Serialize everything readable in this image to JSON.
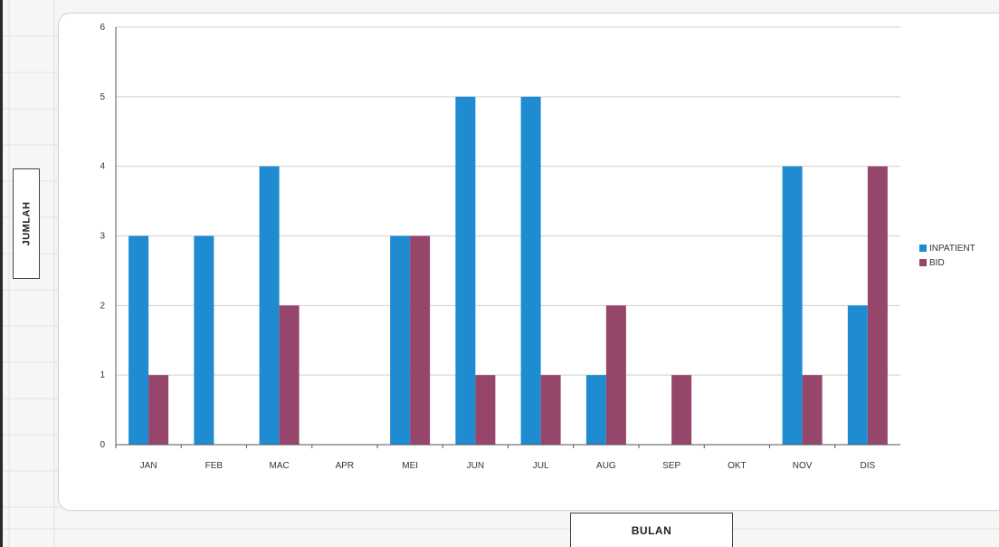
{
  "chart_data": {
    "type": "bar",
    "categories": [
      "JAN",
      "FEB",
      "MAC",
      "APR",
      "MEI",
      "JUN",
      "JUL",
      "AUG",
      "SEP",
      "OKT",
      "NOV",
      "DIS"
    ],
    "series": [
      {
        "name": "INPATIENT",
        "values": [
          3,
          3,
          4,
          0,
          3,
          5,
          5,
          1,
          0,
          0,
          4,
          2
        ],
        "color": "#1f8bd0"
      },
      {
        "name": "BID",
        "values": [
          1,
          0,
          2,
          0,
          3,
          1,
          1,
          2,
          1,
          0,
          1,
          4
        ],
        "color": "#95466a"
      }
    ],
    "xlabel": "BULAN",
    "ylabel": "JUMLAH",
    "ylim": [
      0,
      6
    ],
    "yticks": [
      "0",
      "1",
      "2",
      "3",
      "4",
      "5",
      "6"
    ],
    "grid": true,
    "legend_position": "right"
  }
}
